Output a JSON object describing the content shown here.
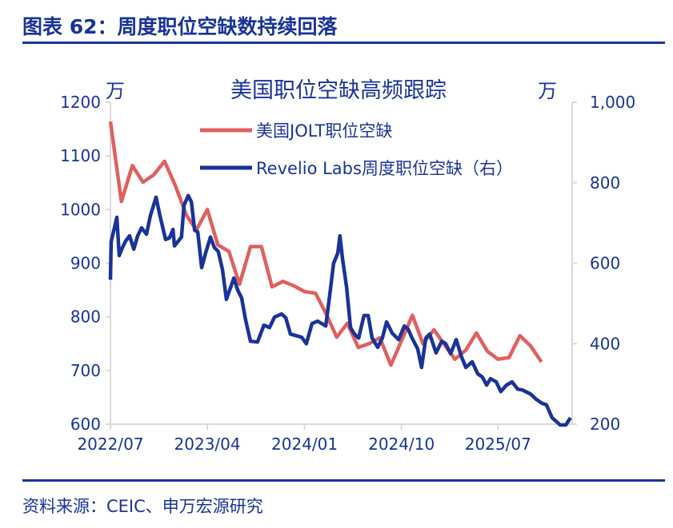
{
  "header": {
    "title": "图表 62：周度职位空缺数持续回落"
  },
  "footer": {
    "source": "资料来源：CEIC、申万宏源研究"
  },
  "chart_data": {
    "type": "line",
    "title": "美国职位空缺高频跟踪",
    "left_unit": "万",
    "right_unit": "万",
    "ylim_left": [
      600,
      1200
    ],
    "yticks_left": [
      "600",
      "700",
      "800",
      "900",
      "1000",
      "1100",
      "1200"
    ],
    "ylim_right": [
      200,
      1000
    ],
    "yticks_right": [
      "200",
      "400",
      "600",
      "800",
      "1,000"
    ],
    "xticks": [
      "2022/07",
      "2023/04",
      "2024/01",
      "2024/10",
      "2025/07"
    ],
    "legend_position": "top-right",
    "grid": false,
    "series": [
      {
        "name": "美国JOLT职位空缺",
        "axis": "left",
        "color": "#e06060",
        "x": [
          "2022-07",
          "2022-08",
          "2022-09",
          "2022-10",
          "2022-11",
          "2022-12",
          "2023-01",
          "2023-02",
          "2023-03",
          "2023-04",
          "2023-05",
          "2023-06",
          "2023-07",
          "2023-08",
          "2023-09",
          "2023-10",
          "2023-11",
          "2023-12",
          "2024-01",
          "2024-02",
          "2024-03",
          "2024-04",
          "2024-05",
          "2024-06",
          "2024-07",
          "2024-08",
          "2024-09",
          "2024-10",
          "2024-11",
          "2024-12",
          "2025-01",
          "2025-02",
          "2025-03",
          "2025-04",
          "2025-05",
          "2025-06",
          "2025-07",
          "2025-08",
          "2025-09",
          "2025-10",
          "2025-11"
        ],
        "values": [
          1164,
          1015,
          1082,
          1051,
          1065,
          1090,
          1044,
          989,
          962,
          1000,
          934,
          922,
          861,
          931,
          931,
          856,
          866,
          858,
          847,
          844,
          807,
          762,
          788,
          743,
          750,
          761,
          710,
          755,
          803,
          750,
          776,
          747,
          721,
          738,
          770,
          736,
          721,
          724,
          765,
          746,
          716
        ]
      },
      {
        "name": "Revelio Labs周度职位空缺（右）",
        "axis": "right",
        "color": "#1a3399",
        "x": [
          "2022-07-01",
          "2022-07-03",
          "2022-07-19",
          "2022-07-26",
          "2022-08-04",
          "2022-08-13",
          "2022-08-24",
          "2022-09-05",
          "2022-09-16",
          "2022-09-27",
          "2022-10-11",
          "2022-10-22",
          "2022-11-07",
          "2022-11-18",
          "2022-12-04",
          "2022-12-15",
          "2022-12-25",
          "2022-12-29",
          "2023-01-18",
          "2023-01-25",
          "2023-02-06",
          "2023-02-15",
          "2023-02-24",
          "2023-03-05",
          "2023-03-16",
          "2023-03-27",
          "2023-04-10",
          "2023-04-21",
          "2023-05-02",
          "2023-05-14",
          "2023-05-25",
          "2023-06-15",
          "2023-06-26",
          "2023-07-07",
          "2023-07-18",
          "2023-08-01",
          "2023-08-21",
          "2023-09-08",
          "2023-09-24",
          "2023-10-08",
          "2023-10-28",
          "2023-11-09",
          "2023-11-22",
          "2023-12-24",
          "2024-01-06",
          "2024-01-22",
          "2024-02-07",
          "2024-03-01",
          "2024-03-14",
          "2024-03-23",
          "2024-04-04",
          "2024-04-10",
          "2024-04-17",
          "2024-04-29",
          "2024-05-10",
          "2024-05-21",
          "2024-06-02",
          "2024-06-17",
          "2024-06-29",
          "2024-07-10",
          "2024-07-26",
          "2024-08-08",
          "2024-08-20",
          "2024-09-05",
          "2024-09-23",
          "2024-10-09",
          "2024-10-20",
          "2024-10-31",
          "2024-11-16",
          "2024-11-27",
          "2024-12-09",
          "2024-12-20",
          "2025-01-07",
          "2025-01-23",
          "2025-02-03",
          "2025-02-17",
          "2025-03-05",
          "2025-03-20",
          "2025-04-01",
          "2025-04-19",
          "2025-05-05",
          "2025-05-18",
          "2025-05-30",
          "2025-06-10",
          "2025-06-26",
          "2025-07-09",
          "2025-07-25",
          "2025-08-10",
          "2025-08-26",
          "2025-09-08",
          "2025-10-01",
          "2025-10-17",
          "2025-11-02",
          "2025-11-15",
          "2025-12-01",
          "2025-12-24",
          "2026-01-09",
          "2026-01-22"
        ],
        "values": [
          559,
          653,
          714,
          619,
          639,
          655,
          668,
          635,
          668,
          688,
          672,
          718,
          764,
          718,
          659,
          663,
          684,
          643,
          665,
          744,
          768,
          752,
          682,
          678,
          589,
          625,
          665,
          639,
          629,
          583,
          510,
          563,
          533,
          514,
          460,
          406,
          404,
          446,
          440,
          466,
          474,
          464,
          424,
          416,
          400,
          450,
          456,
          444,
          533,
          599,
          625,
          668,
          613,
          539,
          440,
          424,
          414,
          470,
          470,
          414,
          391,
          414,
          454,
          426,
          410,
          444,
          436,
          414,
          387,
          341,
          414,
          424,
          377,
          406,
          400,
          375,
          410,
          367,
          341,
          355,
          325,
          317,
          297,
          313,
          305,
          281,
          297,
          305,
          287,
          285,
          275,
          262,
          252,
          248,
          216,
          198,
          198,
          216
        ]
      }
    ]
  }
}
